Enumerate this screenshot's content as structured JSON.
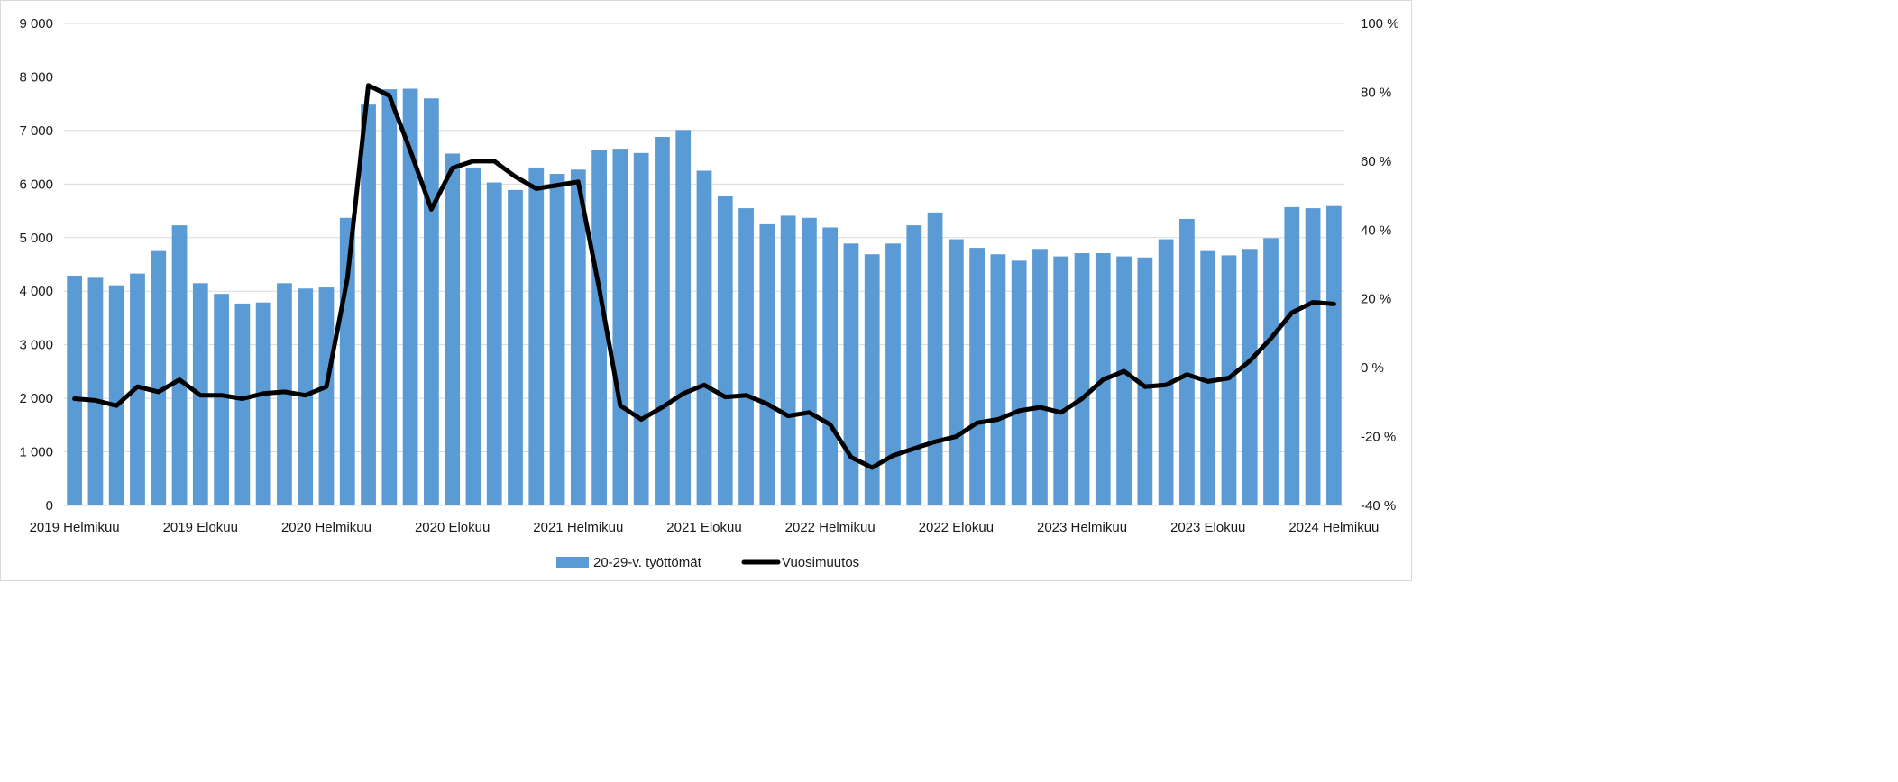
{
  "chart_data": {
    "type": "bar",
    "title": "",
    "xlabel": "",
    "ylabel": "",
    "categories": [
      "2019 Helmikuu",
      "2019 Maaliskuu",
      "2019 Huhtikuu",
      "2019 Toukokuu",
      "2019 Kesäkuu",
      "2019 Heinäkuu",
      "2019 Elokuu",
      "2019 Syyskuu",
      "2019 Lokakuu",
      "2019 Marraskuu",
      "2019 Joulukuu",
      "2020 Tammikuu",
      "2020 Helmikuu",
      "2020 Maaliskuu",
      "2020 Huhtikuu",
      "2020 Toukokuu",
      "2020 Kesäkuu",
      "2020 Heinäkuu",
      "2020 Elokuu",
      "2020 Syyskuu",
      "2020 Lokakuu",
      "2020 Marraskuu",
      "2020 Joulukuu",
      "2021 Tammikuu",
      "2021 Helmikuu",
      "2021 Maaliskuu",
      "2021 Huhtikuu",
      "2021 Toukokuu",
      "2021 Kesäkuu",
      "2021 Heinäkuu",
      "2021 Elokuu",
      "2021 Syyskuu",
      "2021 Lokakuu",
      "2021 Marraskuu",
      "2021 Joulukuu",
      "2022 Tammikuu",
      "2022 Helmikuu",
      "2022 Maaliskuu",
      "2022 Huhtikuu",
      "2022 Toukokuu",
      "2022 Kesäkuu",
      "2022 Heinäkuu",
      "2022 Elokuu",
      "2022 Syyskuu",
      "2022 Lokakuu",
      "2022 Marraskuu",
      "2022 Joulukuu",
      "2023 Tammikuu",
      "2023 Helmikuu",
      "2023 Maaliskuu",
      "2023 Huhtikuu",
      "2023 Toukokuu",
      "2023 Kesäkuu",
      "2023 Heinäkuu",
      "2023 Elokuu",
      "2023 Syyskuu",
      "2023 Lokakuu",
      "2023 Marraskuu",
      "2023 Joulukuu",
      "2024 Tammikuu",
      "2024 Helmikuu"
    ],
    "x_tick_labels": [
      {
        "index": 0,
        "label": "2019 Helmikuu"
      },
      {
        "index": 6,
        "label": "2019 Elokuu"
      },
      {
        "index": 12,
        "label": "2020 Helmikuu"
      },
      {
        "index": 18,
        "label": "2020 Elokuu"
      },
      {
        "index": 24,
        "label": "2021 Helmikuu"
      },
      {
        "index": 30,
        "label": "2021 Elokuu"
      },
      {
        "index": 36,
        "label": "2022 Helmikuu"
      },
      {
        "index": 42,
        "label": "2022 Elokuu"
      },
      {
        "index": 48,
        "label": "2023 Helmikuu"
      },
      {
        "index": 54,
        "label": "2023 Elokuu"
      },
      {
        "index": 60,
        "label": "2024 Helmikuu"
      }
    ],
    "series": [
      {
        "name": "20-29-v. työttömät",
        "type": "bar",
        "axis": "left",
        "color": "#5b9bd5",
        "values": [
          4290,
          4250,
          4110,
          4330,
          4750,
          5230,
          4150,
          3950,
          3770,
          3790,
          4150,
          4050,
          4070,
          5370,
          7500,
          7770,
          7780,
          7600,
          6570,
          6310,
          6030,
          5890,
          6310,
          6190,
          6270,
          6630,
          6660,
          6580,
          6880,
          7010,
          6250,
          5770,
          5550,
          5250,
          5410,
          5370,
          5190,
          4890,
          4690,
          4890,
          5230,
          5470,
          4970,
          4810,
          4690,
          4570,
          4790,
          4650,
          4710,
          4710,
          4650,
          4630,
          4970,
          5350,
          4750,
          4670,
          4790,
          4990,
          5570,
          5550,
          5590
        ]
      },
      {
        "name": "Vuosimuutos",
        "type": "line",
        "axis": "right",
        "color": "#000000",
        "values": [
          -9,
          -9.5,
          -11,
          -5.5,
          -7,
          -3.5,
          -8,
          -8,
          -9,
          -7.5,
          -7,
          -8,
          -5.5,
          26,
          82,
          79,
          63,
          46,
          58,
          60,
          60,
          55.5,
          52,
          53,
          54,
          23,
          -11,
          -15,
          -11.5,
          -7.5,
          -5,
          -8.5,
          -8,
          -10.5,
          -14,
          -13,
          -16.5,
          -26,
          -29,
          -25.5,
          -23.5,
          -21.5,
          -20,
          -16,
          -15,
          -12.5,
          -11.5,
          -13,
          -9,
          -3.5,
          -1,
          -5.5,
          -5,
          -2,
          -4,
          -3,
          2,
          8.5,
          16,
          19,
          18.5
        ]
      }
    ],
    "y_left": {
      "min": 0,
      "max": 9000,
      "step": 1000,
      "tick_labels": [
        "0",
        "1 000",
        "2 000",
        "3 000",
        "4 000",
        "5 000",
        "6 000",
        "7 000",
        "8 000",
        "9 000"
      ]
    },
    "y_right": {
      "min": -40,
      "max": 100,
      "step": 20,
      "tick_labels": [
        "-40 %",
        "-20 %",
        "0 %",
        "20 %",
        "40 %",
        "60 %",
        "80 %",
        "100 %"
      ]
    },
    "grid": true,
    "gridline_color": "#d9d9d9",
    "legend": {
      "position": "bottom",
      "items": [
        {
          "label": "20-29-v. työttömät",
          "color": "#5b9bd5",
          "marker": "bar"
        },
        {
          "label": "Vuosimuutos",
          "color": "#000000",
          "marker": "line"
        }
      ]
    }
  }
}
